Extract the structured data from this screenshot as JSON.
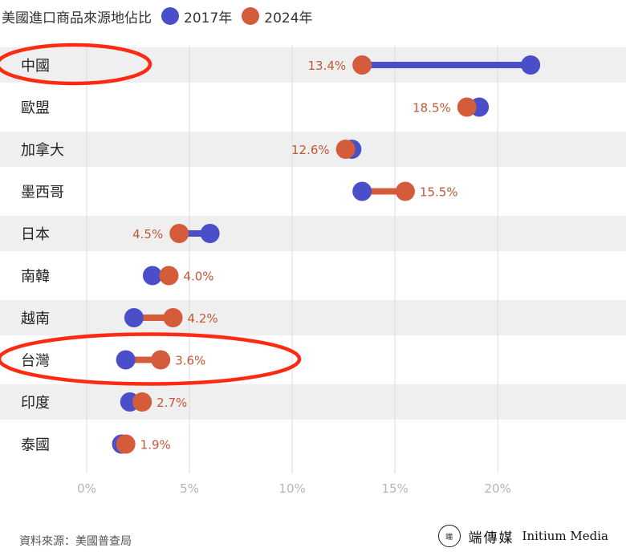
{
  "legend": {
    "title": "美國進口商品來源地佔比",
    "series_2017": "2017年",
    "series_2024": "2024年"
  },
  "colors": {
    "s2017": "#4a4fc9",
    "s2024": "#d55c3a",
    "label": "#c0583a",
    "band": "#efefef",
    "grid": "#dcdcdc",
    "highlight": "#ff2a12"
  },
  "chart_data": {
    "type": "dumbbell",
    "title": "美國進口商品來源地佔比",
    "xlim": [
      0,
      23
    ],
    "xticks": [
      0,
      5,
      10,
      15,
      20
    ],
    "xtick_labels": [
      "0%",
      "5%",
      "10%",
      "15%",
      "20%"
    ],
    "categories": [
      "中國",
      "歐盟",
      "加拿大",
      "墨西哥",
      "日本",
      "南韓",
      "越南",
      "台灣",
      "印度",
      "泰國"
    ],
    "series": [
      {
        "name": "2017年",
        "values": [
          21.6,
          19.1,
          12.9,
          13.4,
          6.0,
          3.2,
          2.3,
          1.9,
          2.1,
          1.7
        ]
      },
      {
        "name": "2024年",
        "values": [
          13.4,
          18.5,
          12.6,
          15.5,
          4.5,
          4.0,
          4.2,
          3.6,
          2.7,
          1.9
        ]
      }
    ],
    "labels_2024": [
      "13.4%",
      "18.5%",
      "12.6%",
      "15.5%",
      "4.5%",
      "4.0%",
      "4.2%",
      "3.6%",
      "2.7%",
      "1.9%"
    ],
    "highlighted": [
      "中國",
      "台灣"
    ]
  },
  "footer": {
    "source": "資料來源：美國普查局",
    "brand_cn": "端傳媒",
    "brand_en": "Initium Media",
    "logo_text": "端"
  }
}
